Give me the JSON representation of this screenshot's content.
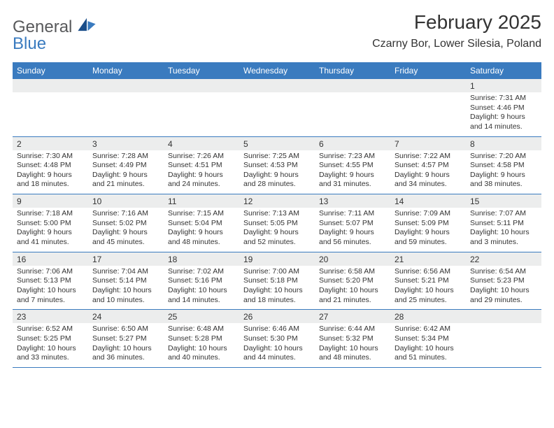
{
  "brand": {
    "line1": "General",
    "line2": "Blue"
  },
  "header": {
    "month_title": "February 2025",
    "location": "Czarny Bor, Lower Silesia, Poland"
  },
  "colors": {
    "header_bg": "#3a7bbf",
    "header_text": "#ffffff",
    "daynum_bg": "#eceded",
    "body_text": "#333333",
    "logo_gray": "#58595b",
    "logo_blue": "#3a7bbf",
    "rule": "#3a7bbf"
  },
  "calendar": {
    "dow": [
      "Sunday",
      "Monday",
      "Tuesday",
      "Wednesday",
      "Thursday",
      "Friday",
      "Saturday"
    ],
    "weeks": [
      [
        {
          "n": "",
          "sunrise": "",
          "sunset": "",
          "daylight": ""
        },
        {
          "n": "",
          "sunrise": "",
          "sunset": "",
          "daylight": ""
        },
        {
          "n": "",
          "sunrise": "",
          "sunset": "",
          "daylight": ""
        },
        {
          "n": "",
          "sunrise": "",
          "sunset": "",
          "daylight": ""
        },
        {
          "n": "",
          "sunrise": "",
          "sunset": "",
          "daylight": ""
        },
        {
          "n": "",
          "sunrise": "",
          "sunset": "",
          "daylight": ""
        },
        {
          "n": "1",
          "sunrise": "Sunrise: 7:31 AM",
          "sunset": "Sunset: 4:46 PM",
          "daylight": "Daylight: 9 hours and 14 minutes."
        }
      ],
      [
        {
          "n": "2",
          "sunrise": "Sunrise: 7:30 AM",
          "sunset": "Sunset: 4:48 PM",
          "daylight": "Daylight: 9 hours and 18 minutes."
        },
        {
          "n": "3",
          "sunrise": "Sunrise: 7:28 AM",
          "sunset": "Sunset: 4:49 PM",
          "daylight": "Daylight: 9 hours and 21 minutes."
        },
        {
          "n": "4",
          "sunrise": "Sunrise: 7:26 AM",
          "sunset": "Sunset: 4:51 PM",
          "daylight": "Daylight: 9 hours and 24 minutes."
        },
        {
          "n": "5",
          "sunrise": "Sunrise: 7:25 AM",
          "sunset": "Sunset: 4:53 PM",
          "daylight": "Daylight: 9 hours and 28 minutes."
        },
        {
          "n": "6",
          "sunrise": "Sunrise: 7:23 AM",
          "sunset": "Sunset: 4:55 PM",
          "daylight": "Daylight: 9 hours and 31 minutes."
        },
        {
          "n": "7",
          "sunrise": "Sunrise: 7:22 AM",
          "sunset": "Sunset: 4:57 PM",
          "daylight": "Daylight: 9 hours and 34 minutes."
        },
        {
          "n": "8",
          "sunrise": "Sunrise: 7:20 AM",
          "sunset": "Sunset: 4:58 PM",
          "daylight": "Daylight: 9 hours and 38 minutes."
        }
      ],
      [
        {
          "n": "9",
          "sunrise": "Sunrise: 7:18 AM",
          "sunset": "Sunset: 5:00 PM",
          "daylight": "Daylight: 9 hours and 41 minutes."
        },
        {
          "n": "10",
          "sunrise": "Sunrise: 7:16 AM",
          "sunset": "Sunset: 5:02 PM",
          "daylight": "Daylight: 9 hours and 45 minutes."
        },
        {
          "n": "11",
          "sunrise": "Sunrise: 7:15 AM",
          "sunset": "Sunset: 5:04 PM",
          "daylight": "Daylight: 9 hours and 48 minutes."
        },
        {
          "n": "12",
          "sunrise": "Sunrise: 7:13 AM",
          "sunset": "Sunset: 5:05 PM",
          "daylight": "Daylight: 9 hours and 52 minutes."
        },
        {
          "n": "13",
          "sunrise": "Sunrise: 7:11 AM",
          "sunset": "Sunset: 5:07 PM",
          "daylight": "Daylight: 9 hours and 56 minutes."
        },
        {
          "n": "14",
          "sunrise": "Sunrise: 7:09 AM",
          "sunset": "Sunset: 5:09 PM",
          "daylight": "Daylight: 9 hours and 59 minutes."
        },
        {
          "n": "15",
          "sunrise": "Sunrise: 7:07 AM",
          "sunset": "Sunset: 5:11 PM",
          "daylight": "Daylight: 10 hours and 3 minutes."
        }
      ],
      [
        {
          "n": "16",
          "sunrise": "Sunrise: 7:06 AM",
          "sunset": "Sunset: 5:13 PM",
          "daylight": "Daylight: 10 hours and 7 minutes."
        },
        {
          "n": "17",
          "sunrise": "Sunrise: 7:04 AM",
          "sunset": "Sunset: 5:14 PM",
          "daylight": "Daylight: 10 hours and 10 minutes."
        },
        {
          "n": "18",
          "sunrise": "Sunrise: 7:02 AM",
          "sunset": "Sunset: 5:16 PM",
          "daylight": "Daylight: 10 hours and 14 minutes."
        },
        {
          "n": "19",
          "sunrise": "Sunrise: 7:00 AM",
          "sunset": "Sunset: 5:18 PM",
          "daylight": "Daylight: 10 hours and 18 minutes."
        },
        {
          "n": "20",
          "sunrise": "Sunrise: 6:58 AM",
          "sunset": "Sunset: 5:20 PM",
          "daylight": "Daylight: 10 hours and 21 minutes."
        },
        {
          "n": "21",
          "sunrise": "Sunrise: 6:56 AM",
          "sunset": "Sunset: 5:21 PM",
          "daylight": "Daylight: 10 hours and 25 minutes."
        },
        {
          "n": "22",
          "sunrise": "Sunrise: 6:54 AM",
          "sunset": "Sunset: 5:23 PM",
          "daylight": "Daylight: 10 hours and 29 minutes."
        }
      ],
      [
        {
          "n": "23",
          "sunrise": "Sunrise: 6:52 AM",
          "sunset": "Sunset: 5:25 PM",
          "daylight": "Daylight: 10 hours and 33 minutes."
        },
        {
          "n": "24",
          "sunrise": "Sunrise: 6:50 AM",
          "sunset": "Sunset: 5:27 PM",
          "daylight": "Daylight: 10 hours and 36 minutes."
        },
        {
          "n": "25",
          "sunrise": "Sunrise: 6:48 AM",
          "sunset": "Sunset: 5:28 PM",
          "daylight": "Daylight: 10 hours and 40 minutes."
        },
        {
          "n": "26",
          "sunrise": "Sunrise: 6:46 AM",
          "sunset": "Sunset: 5:30 PM",
          "daylight": "Daylight: 10 hours and 44 minutes."
        },
        {
          "n": "27",
          "sunrise": "Sunrise: 6:44 AM",
          "sunset": "Sunset: 5:32 PM",
          "daylight": "Daylight: 10 hours and 48 minutes."
        },
        {
          "n": "28",
          "sunrise": "Sunrise: 6:42 AM",
          "sunset": "Sunset: 5:34 PM",
          "daylight": "Daylight: 10 hours and 51 minutes."
        },
        {
          "n": "",
          "sunrise": "",
          "sunset": "",
          "daylight": ""
        }
      ]
    ]
  }
}
